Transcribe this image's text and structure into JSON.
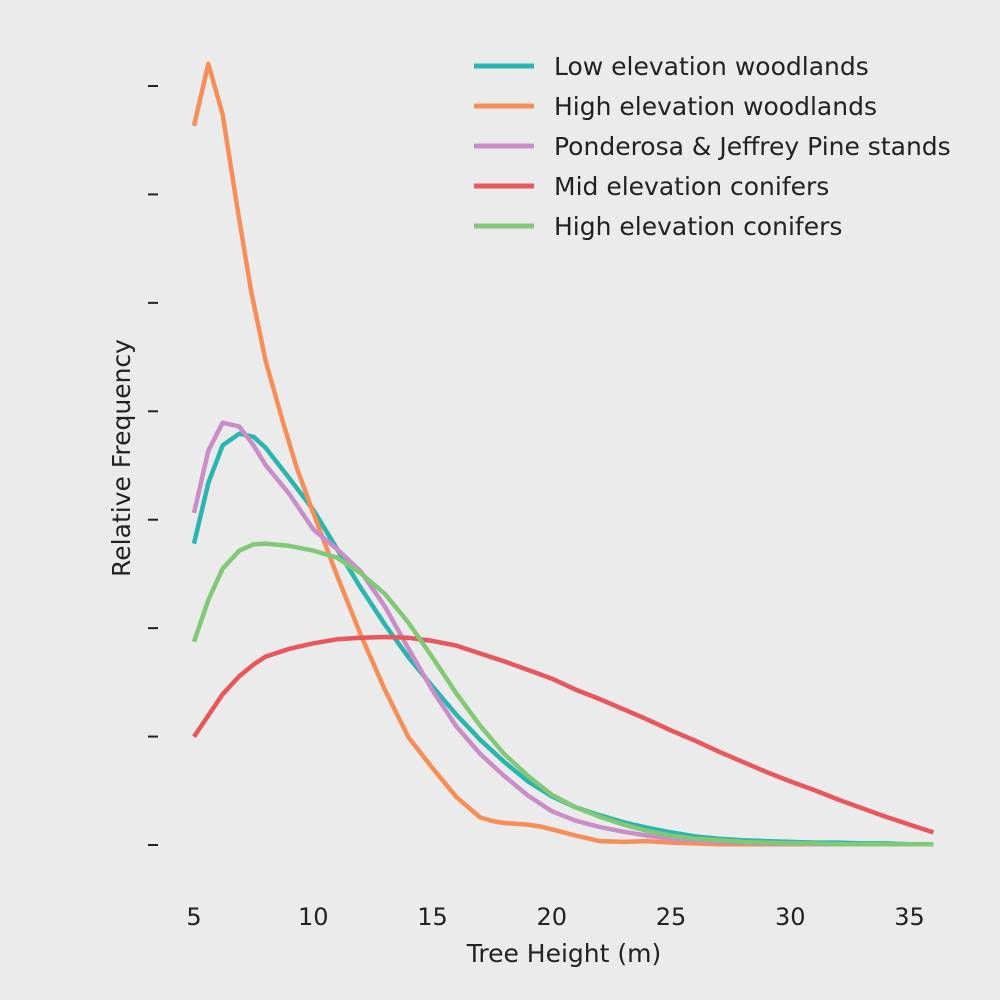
{
  "chart_data": {
    "type": "line",
    "title": "",
    "xlabel": "Tree Height (m)",
    "ylabel": "Relative Frequency",
    "xlim": [
      3.5,
      37
    ],
    "ylim": [
      0,
      100
    ],
    "xticks": [
      5,
      10,
      15,
      20,
      25,
      30,
      35
    ],
    "yticks_count": 8,
    "ytick_labels_shown": false,
    "grid": false,
    "legend": "top-right",
    "series": [
      {
        "name": "Low elevation woodlands",
        "color": "#2ab5b0",
        "x": [
          5,
          5.6,
          6.2,
          6.9,
          7.5,
          8,
          9,
          10,
          11,
          12,
          13,
          14,
          15,
          16,
          17,
          18,
          19,
          20,
          21,
          22,
          23,
          24,
          25,
          26,
          27,
          28,
          29,
          30,
          31,
          32,
          33,
          34,
          35,
          36
        ],
        "y": [
          38.4,
          46.1,
          50.9,
          52.4,
          52,
          50.6,
          46.7,
          42.7,
          37.7,
          32.7,
          28.1,
          23.9,
          20.2,
          16.6,
          13.4,
          10.6,
          8.1,
          6.2,
          4.8,
          3.8,
          2.9,
          2.2,
          1.6,
          1.1,
          0.8,
          0.6,
          0.5,
          0.4,
          0.3,
          0.3,
          0.2,
          0.2,
          0.1,
          0.1
        ]
      },
      {
        "name": "High elevation woodlands",
        "color": "#f68e57",
        "x": [
          5,
          5.6,
          6.2,
          6.8,
          7.4,
          8,
          8.7,
          9.3,
          10,
          11,
          12,
          13,
          14,
          15,
          16,
          17,
          17.6,
          18,
          19,
          19.6,
          20,
          21,
          22,
          23,
          24,
          25,
          26,
          27,
          28,
          29,
          30,
          31,
          32,
          33,
          34,
          35,
          36
        ],
        "y": [
          91.6,
          99.5,
          93.1,
          81.5,
          70.5,
          61.7,
          54.2,
          48.1,
          42.3,
          34.3,
          26.7,
          19.8,
          13.7,
          9.8,
          6.1,
          3.5,
          3.0,
          2.8,
          2.6,
          2.3,
          2.0,
          1.2,
          0.5,
          0.4,
          0.5,
          0.3,
          0.2,
          0.1,
          0.1,
          0.1,
          0.1,
          0.1,
          0.1,
          0.1,
          0.1,
          0.1,
          0.1
        ]
      },
      {
        "name": "Ponderosa & Jeffrey Pine stands",
        "color": "#c98ec8",
        "x": [
          5,
          5.6,
          6.2,
          6.9,
          7.5,
          8,
          9,
          10,
          11,
          12,
          13,
          14,
          15,
          16,
          17,
          18,
          19,
          20,
          21,
          22,
          23,
          24,
          25,
          26,
          27,
          28,
          29,
          30,
          31,
          32,
          33,
          34,
          35,
          36
        ],
        "y": [
          42.3,
          50.2,
          53.8,
          53.3,
          50.9,
          48.4,
          44.7,
          40.2,
          37.7,
          34.8,
          30.4,
          25.0,
          19.7,
          15.1,
          11.6,
          8.8,
          6.3,
          4.3,
          3.1,
          2.3,
          1.7,
          1.2,
          0.8,
          0.6,
          0.4,
          0.3,
          0.2,
          0.2,
          0.1,
          0.1,
          0.1,
          0.1,
          0.1,
          0.1
        ]
      },
      {
        "name": "Mid elevation conifers",
        "color": "#e8575b",
        "x": [
          5,
          5.6,
          6.2,
          6.9,
          7.5,
          8,
          9,
          10,
          11,
          12,
          13,
          14,
          15,
          16,
          17,
          18,
          19,
          20,
          21,
          22,
          23,
          24,
          25,
          26,
          27,
          28,
          29,
          30,
          31,
          32,
          33,
          34,
          35,
          36
        ],
        "y": [
          13.8,
          16.5,
          19.2,
          21.5,
          23.0,
          24.0,
          25.0,
          25.7,
          26.2,
          26.4,
          26.5,
          26.4,
          26.0,
          25.4,
          24.4,
          23.4,
          22.3,
          21.2,
          19.8,
          18.6,
          17.3,
          16.0,
          14.6,
          13.3,
          11.9,
          10.6,
          9.3,
          8.1,
          7.0,
          5.8,
          4.7,
          3.6,
          2.6,
          1.6
        ]
      },
      {
        "name": "High elevation conifers",
        "color": "#81c977",
        "x": [
          5,
          5.6,
          6.2,
          6.9,
          7.5,
          8,
          9,
          10,
          11,
          12,
          13,
          14,
          15,
          16,
          17,
          18,
          19,
          20,
          21,
          22,
          23,
          24,
          25,
          26,
          27,
          28,
          29,
          30,
          31,
          32,
          33,
          34,
          35,
          36
        ],
        "y": [
          25.9,
          31.2,
          35.2,
          37.5,
          38.3,
          38.4,
          38.1,
          37.5,
          36.6,
          34.6,
          32.0,
          28.3,
          23.9,
          19.3,
          15.2,
          11.6,
          8.8,
          6.4,
          4.8,
          3.6,
          2.6,
          1.8,
          1.2,
          0.8,
          0.6,
          0.4,
          0.3,
          0.2,
          0.2,
          0.1,
          0.1,
          0.1,
          0.1,
          0.1
        ]
      }
    ]
  }
}
